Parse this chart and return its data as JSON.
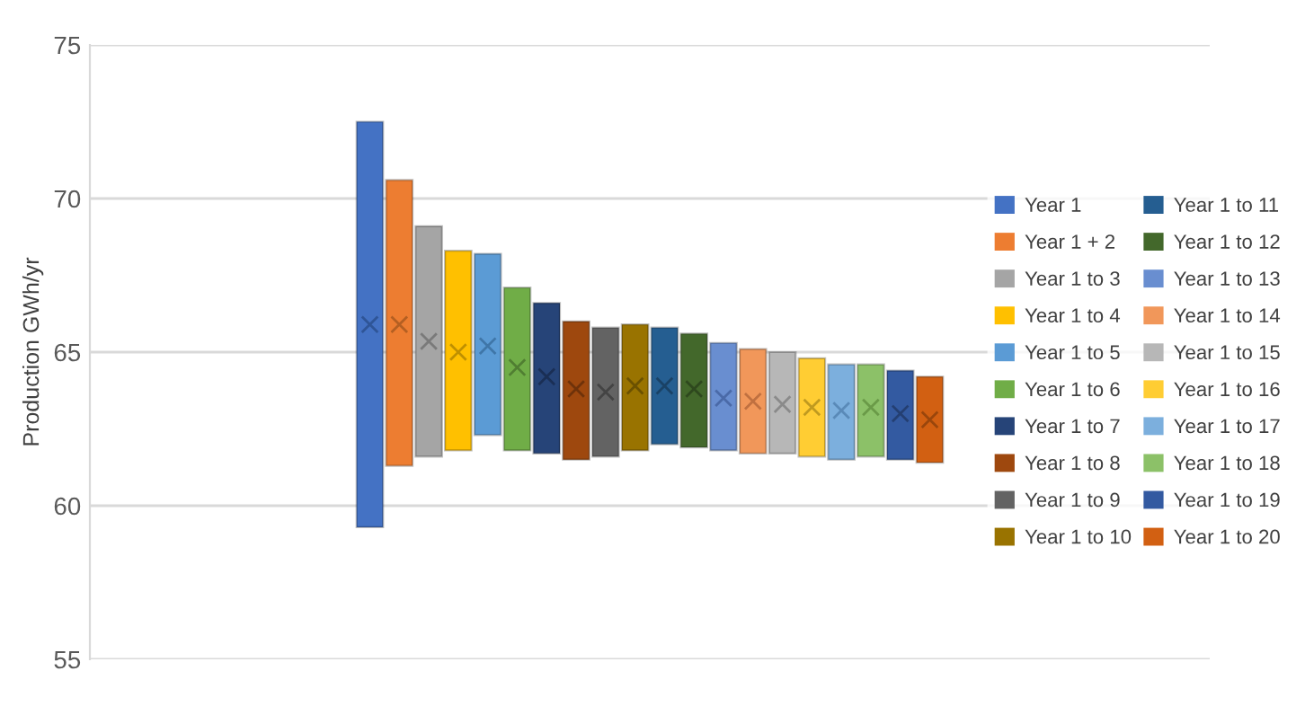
{
  "chart_data": {
    "type": "bar",
    "ylabel": "Production GWh/yr",
    "categories": [
      null,
      null,
      null,
      null,
      null,
      null,
      null,
      null,
      null,
      null,
      null,
      null,
      null,
      null,
      null,
      null,
      null,
      null,
      null,
      null,
      null,
      null,
      null,
      null,
      null,
      null,
      null,
      null,
      null,
      null,
      null,
      null,
      null,
      null,
      null,
      null,
      null,
      null
    ],
    "ylim": [
      55,
      75
    ],
    "yticks": [
      55,
      60,
      65,
      70,
      75
    ],
    "grid": "y",
    "legend": "right",
    "tick_labels": "y",
    "series": [
      {
        "name": "Year 1",
        "color": "#4472c4",
        "values": [
          null,
          null,
          null,
          null,
          null,
          null,
          null,
          null,
          null,
          13.2,
          null,
          null,
          null,
          null,
          null,
          null,
          null,
          null,
          null,
          null,
          null,
          null,
          null,
          null,
          null,
          null,
          null,
          null,
          null,
          null,
          null,
          null,
          null,
          null,
          null,
          null,
          null,
          null
        ],
        "base": [
          null,
          null,
          null,
          null,
          null,
          null,
          null,
          null,
          null,
          59.3,
          null,
          null,
          null,
          null,
          null,
          null,
          null,
          null,
          null,
          null,
          null,
          null,
          null,
          null,
          null,
          null,
          null,
          null,
          null,
          null,
          null,
          null,
          null,
          null,
          null,
          null,
          null,
          null
        ]
      },
      {
        "name": "Year 1 + 2",
        "color": "#ed7d31",
        "values": [
          null,
          null,
          null,
          null,
          null,
          null,
          null,
          null,
          null,
          null,
          9.3,
          null,
          null,
          null,
          null,
          null,
          null,
          null,
          null,
          null,
          null,
          null,
          null,
          null,
          null,
          null,
          null,
          null,
          null,
          null,
          null,
          null,
          null,
          null,
          null,
          null,
          null,
          null
        ],
        "base": [
          null,
          null,
          null,
          null,
          null,
          null,
          null,
          null,
          null,
          null,
          61.3,
          null,
          null,
          null,
          null,
          null,
          null,
          null,
          null,
          null,
          null,
          null,
          null,
          null,
          null,
          null,
          null,
          null,
          null,
          null,
          null,
          null,
          null,
          null,
          null,
          null,
          null,
          null
        ]
      },
      {
        "name": "Year 1 to 3",
        "color": "#a5a5a5",
        "values": [
          null,
          null,
          null,
          null,
          null,
          null,
          null,
          null,
          null,
          null,
          null,
          7.5,
          null,
          null,
          null,
          null,
          null,
          null,
          null,
          null,
          null,
          null,
          null,
          null,
          null,
          null,
          null,
          null,
          null,
          null,
          null,
          null,
          null,
          null,
          null,
          null,
          null,
          null
        ],
        "base": [
          null,
          null,
          null,
          null,
          null,
          null,
          null,
          null,
          null,
          null,
          null,
          61.6,
          null,
          null,
          null,
          null,
          null,
          null,
          null,
          null,
          null,
          null,
          null,
          null,
          null,
          null,
          null,
          null,
          null,
          null,
          null,
          null,
          null,
          null,
          null,
          null,
          null,
          null
        ]
      },
      {
        "name": "Year 1 to 4",
        "color": "#ffc000",
        "values": [
          null,
          null,
          null,
          null,
          null,
          null,
          null,
          null,
          null,
          null,
          null,
          null,
          6.5,
          null,
          null,
          null,
          null,
          null,
          null,
          null,
          null,
          null,
          null,
          null,
          null,
          null,
          null,
          null,
          null,
          null,
          null,
          null,
          null,
          null,
          null,
          null,
          null,
          null
        ],
        "base": [
          null,
          null,
          null,
          null,
          null,
          null,
          null,
          null,
          null,
          null,
          null,
          null,
          61.8,
          null,
          null,
          null,
          null,
          null,
          null,
          null,
          null,
          null,
          null,
          null,
          null,
          null,
          null,
          null,
          null,
          null,
          null,
          null,
          null,
          null,
          null,
          null,
          null,
          null
        ]
      },
      {
        "name": "Year 1 to 5",
        "color": "#5b9bd5",
        "values": [
          null,
          null,
          null,
          null,
          null,
          null,
          null,
          null,
          null,
          null,
          null,
          null,
          null,
          5.9,
          null,
          null,
          null,
          null,
          null,
          null,
          null,
          null,
          null,
          null,
          null,
          null,
          null,
          null,
          null,
          null,
          null,
          null,
          null,
          null,
          null,
          null,
          null,
          null
        ],
        "base": [
          null,
          null,
          null,
          null,
          null,
          null,
          null,
          null,
          null,
          null,
          null,
          null,
          null,
          62.3,
          null,
          null,
          null,
          null,
          null,
          null,
          null,
          null,
          null,
          null,
          null,
          null,
          null,
          null,
          null,
          null,
          null,
          null,
          null,
          null,
          null,
          null,
          null,
          null
        ]
      },
      {
        "name": "Year 1 to 6",
        "color": "#70ad47",
        "values": [
          null,
          null,
          null,
          null,
          null,
          null,
          null,
          null,
          null,
          null,
          null,
          null,
          null,
          null,
          5.3,
          null,
          null,
          null,
          null,
          null,
          null,
          null,
          null,
          null,
          null,
          null,
          null,
          null,
          null,
          null,
          null,
          null,
          null,
          null,
          null,
          null,
          null,
          null
        ],
        "base": [
          null,
          null,
          null,
          null,
          null,
          null,
          null,
          null,
          null,
          null,
          null,
          null,
          null,
          null,
          61.8,
          null,
          null,
          null,
          null,
          null,
          null,
          null,
          null,
          null,
          null,
          null,
          null,
          null,
          null,
          null,
          null,
          null,
          null,
          null,
          null,
          null,
          null,
          null
        ]
      },
      {
        "name": "Year 1 to 7",
        "color": "#264478",
        "values": [
          null,
          null,
          null,
          null,
          null,
          null,
          null,
          null,
          null,
          null,
          null,
          null,
          null,
          null,
          null,
          4.9,
          null,
          null,
          null,
          null,
          null,
          null,
          null,
          null,
          null,
          null,
          null,
          null,
          null,
          null,
          null,
          null,
          null,
          null,
          null,
          null,
          null,
          null
        ],
        "base": [
          null,
          null,
          null,
          null,
          null,
          null,
          null,
          null,
          null,
          null,
          null,
          null,
          null,
          null,
          null,
          61.7,
          null,
          null,
          null,
          null,
          null,
          null,
          null,
          null,
          null,
          null,
          null,
          null,
          null,
          null,
          null,
          null,
          null,
          null,
          null,
          null,
          null,
          null
        ]
      },
      {
        "name": "Year 1 to 8",
        "color": "#9e480e",
        "values": [
          null,
          null,
          null,
          null,
          null,
          null,
          null,
          null,
          null,
          null,
          null,
          null,
          null,
          null,
          null,
          null,
          4.5,
          null,
          null,
          null,
          null,
          null,
          null,
          null,
          null,
          null,
          null,
          null,
          null,
          null,
          null,
          null,
          null,
          null,
          null,
          null,
          null,
          null
        ],
        "base": [
          null,
          null,
          null,
          null,
          null,
          null,
          null,
          null,
          null,
          null,
          null,
          null,
          null,
          null,
          null,
          null,
          61.5,
          null,
          null,
          null,
          null,
          null,
          null,
          null,
          null,
          null,
          null,
          null,
          null,
          null,
          null,
          null,
          null,
          null,
          null,
          null,
          null,
          null
        ]
      },
      {
        "name": "Year 1 to 9",
        "color": "#636363",
        "values": [
          null,
          null,
          null,
          null,
          null,
          null,
          null,
          null,
          null,
          null,
          null,
          null,
          null,
          null,
          null,
          null,
          null,
          4.2,
          null,
          null,
          null,
          null,
          null,
          null,
          null,
          null,
          null,
          null,
          null,
          null,
          null,
          null,
          null,
          null,
          null,
          null,
          null,
          null
        ],
        "base": [
          null,
          null,
          null,
          null,
          null,
          null,
          null,
          null,
          null,
          null,
          null,
          null,
          null,
          null,
          null,
          null,
          null,
          61.6,
          null,
          null,
          null,
          null,
          null,
          null,
          null,
          null,
          null,
          null,
          null,
          null,
          null,
          null,
          null,
          null,
          null,
          null,
          null,
          null
        ]
      },
      {
        "name": "Year 1 to 10",
        "color": "#997300",
        "values": [
          null,
          null,
          null,
          null,
          null,
          null,
          null,
          null,
          null,
          null,
          null,
          null,
          null,
          null,
          null,
          null,
          null,
          null,
          4.1,
          null,
          null,
          null,
          null,
          null,
          null,
          null,
          null,
          null,
          null,
          null,
          null,
          null,
          null,
          null,
          null,
          null,
          null,
          null
        ],
        "base": [
          null,
          null,
          null,
          null,
          null,
          null,
          null,
          null,
          null,
          null,
          null,
          null,
          null,
          null,
          null,
          null,
          null,
          null,
          61.8,
          null,
          null,
          null,
          null,
          null,
          null,
          null,
          null,
          null,
          null,
          null,
          null,
          null,
          null,
          null,
          null,
          null,
          null,
          null
        ]
      },
      {
        "name": "Year 1 to 11",
        "color": "#255e91",
        "values": [
          null,
          null,
          null,
          null,
          null,
          null,
          null,
          null,
          null,
          null,
          null,
          null,
          null,
          null,
          null,
          null,
          null,
          null,
          null,
          3.8,
          null,
          null,
          null,
          null,
          null,
          null,
          null,
          null,
          null,
          null,
          null,
          null,
          null,
          null,
          null,
          null,
          null,
          null
        ],
        "base": [
          null,
          null,
          null,
          null,
          null,
          null,
          null,
          null,
          null,
          null,
          null,
          null,
          null,
          null,
          null,
          null,
          null,
          null,
          null,
          62.0,
          null,
          null,
          null,
          null,
          null,
          null,
          null,
          null,
          null,
          null,
          null,
          null,
          null,
          null,
          null,
          null,
          null,
          null
        ]
      },
      {
        "name": "Year 1 to 12",
        "color": "#43682b",
        "values": [
          null,
          null,
          null,
          null,
          null,
          null,
          null,
          null,
          null,
          null,
          null,
          null,
          null,
          null,
          null,
          null,
          null,
          null,
          null,
          null,
          3.7,
          null,
          null,
          null,
          null,
          null,
          null,
          null,
          null,
          null,
          null,
          null,
          null,
          null,
          null,
          null,
          null,
          null
        ],
        "base": [
          null,
          null,
          null,
          null,
          null,
          null,
          null,
          null,
          null,
          null,
          null,
          null,
          null,
          null,
          null,
          null,
          null,
          null,
          null,
          null,
          61.9,
          null,
          null,
          null,
          null,
          null,
          null,
          null,
          null,
          null,
          null,
          null,
          null,
          null,
          null,
          null,
          null,
          null
        ]
      },
      {
        "name": "Year 1 to 13",
        "color": "#698ed0",
        "values": [
          null,
          null,
          null,
          null,
          null,
          null,
          null,
          null,
          null,
          null,
          null,
          null,
          null,
          null,
          null,
          null,
          null,
          null,
          null,
          null,
          null,
          3.5,
          null,
          null,
          null,
          null,
          null,
          null,
          null,
          null,
          null,
          null,
          null,
          null,
          null,
          null,
          null,
          null
        ],
        "base": [
          null,
          null,
          null,
          null,
          null,
          null,
          null,
          null,
          null,
          null,
          null,
          null,
          null,
          null,
          null,
          null,
          null,
          null,
          null,
          null,
          null,
          61.8,
          null,
          null,
          null,
          null,
          null,
          null,
          null,
          null,
          null,
          null,
          null,
          null,
          null,
          null,
          null,
          null
        ]
      },
      {
        "name": "Year 1 to 14",
        "color": "#f1975a",
        "values": [
          null,
          null,
          null,
          null,
          null,
          null,
          null,
          null,
          null,
          null,
          null,
          null,
          null,
          null,
          null,
          null,
          null,
          null,
          null,
          null,
          null,
          null,
          3.4,
          null,
          null,
          null,
          null,
          null,
          null,
          null,
          null,
          null,
          null,
          null,
          null,
          null,
          null,
          null
        ],
        "base": [
          null,
          null,
          null,
          null,
          null,
          null,
          null,
          null,
          null,
          null,
          null,
          null,
          null,
          null,
          null,
          null,
          null,
          null,
          null,
          null,
          null,
          null,
          61.7,
          null,
          null,
          null,
          null,
          null,
          null,
          null,
          null,
          null,
          null,
          null,
          null,
          null,
          null,
          null
        ]
      },
      {
        "name": "Year 1 to 15",
        "color": "#b7b7b7",
        "values": [
          null,
          null,
          null,
          null,
          null,
          null,
          null,
          null,
          null,
          null,
          null,
          null,
          null,
          null,
          null,
          null,
          null,
          null,
          null,
          null,
          null,
          null,
          null,
          3.3,
          null,
          null,
          null,
          null,
          null,
          null,
          null,
          null,
          null,
          null,
          null,
          null,
          null,
          null
        ],
        "base": [
          null,
          null,
          null,
          null,
          null,
          null,
          null,
          null,
          null,
          null,
          null,
          null,
          null,
          null,
          null,
          null,
          null,
          null,
          null,
          null,
          null,
          null,
          null,
          61.7,
          null,
          null,
          null,
          null,
          null,
          null,
          null,
          null,
          null,
          null,
          null,
          null,
          null,
          null
        ]
      },
      {
        "name": "Year 1 to 16",
        "color": "#ffcd33",
        "values": [
          null,
          null,
          null,
          null,
          null,
          null,
          null,
          null,
          null,
          null,
          null,
          null,
          null,
          null,
          null,
          null,
          null,
          null,
          null,
          null,
          null,
          null,
          null,
          null,
          3.2,
          null,
          null,
          null,
          null,
          null,
          null,
          null,
          null,
          null,
          null,
          null,
          null,
          null
        ],
        "base": [
          null,
          null,
          null,
          null,
          null,
          null,
          null,
          null,
          null,
          null,
          null,
          null,
          null,
          null,
          null,
          null,
          null,
          null,
          null,
          null,
          null,
          null,
          null,
          null,
          61.6,
          null,
          null,
          null,
          null,
          null,
          null,
          null,
          null,
          null,
          null,
          null,
          null,
          null
        ]
      },
      {
        "name": "Year 1 to 17",
        "color": "#7cafdd",
        "values": [
          null,
          null,
          null,
          null,
          null,
          null,
          null,
          null,
          null,
          null,
          null,
          null,
          null,
          null,
          null,
          null,
          null,
          null,
          null,
          null,
          null,
          null,
          null,
          null,
          null,
          3.1,
          null,
          null,
          null,
          null,
          null,
          null,
          null,
          null,
          null,
          null,
          null,
          null
        ],
        "base": [
          null,
          null,
          null,
          null,
          null,
          null,
          null,
          null,
          null,
          null,
          null,
          null,
          null,
          null,
          null,
          null,
          null,
          null,
          null,
          null,
          null,
          null,
          null,
          null,
          null,
          61.5,
          null,
          null,
          null,
          null,
          null,
          null,
          null,
          null,
          null,
          null,
          null,
          null
        ]
      },
      {
        "name": "Year 1 to 18",
        "color": "#8cc168",
        "values": [
          null,
          null,
          null,
          null,
          null,
          null,
          null,
          null,
          null,
          null,
          null,
          null,
          null,
          null,
          null,
          null,
          null,
          null,
          null,
          null,
          null,
          null,
          null,
          null,
          null,
          null,
          3.0,
          null,
          null,
          null,
          null,
          null,
          null,
          null,
          null,
          null,
          null,
          null
        ],
        "base": [
          null,
          null,
          null,
          null,
          null,
          null,
          null,
          null,
          null,
          null,
          null,
          null,
          null,
          null,
          null,
          null,
          null,
          null,
          null,
          null,
          null,
          null,
          null,
          null,
          null,
          null,
          61.6,
          null,
          null,
          null,
          null,
          null,
          null,
          null,
          null,
          null,
          null,
          null
        ]
      },
      {
        "name": "Year 1 to 19",
        "color": "#335aa1",
        "values": [
          null,
          null,
          null,
          null,
          null,
          null,
          null,
          null,
          null,
          null,
          null,
          null,
          null,
          null,
          null,
          null,
          null,
          null,
          null,
          null,
          null,
          null,
          null,
          null,
          null,
          null,
          null,
          2.9,
          null,
          null,
          null,
          null,
          null,
          null,
          null,
          null,
          null,
          null
        ],
        "base": [
          null,
          null,
          null,
          null,
          null,
          null,
          null,
          null,
          null,
          null,
          null,
          null,
          null,
          null,
          null,
          null,
          null,
          null,
          null,
          null,
          null,
          null,
          null,
          null,
          null,
          null,
          null,
          61.5,
          null,
          null,
          null,
          null,
          null,
          null,
          null,
          null,
          null,
          null
        ]
      },
      {
        "name": "Year 1 to 20",
        "color": "#d26012",
        "values": [
          null,
          null,
          null,
          null,
          null,
          null,
          null,
          null,
          null,
          null,
          null,
          null,
          null,
          null,
          null,
          null,
          null,
          null,
          null,
          null,
          null,
          null,
          null,
          null,
          null,
          null,
          null,
          null,
          2.8,
          null,
          null,
          null,
          null,
          null,
          null,
          null,
          null,
          null
        ],
        "base": [
          null,
          null,
          null,
          null,
          null,
          null,
          null,
          null,
          null,
          null,
          null,
          null,
          null,
          null,
          null,
          null,
          null,
          null,
          null,
          null,
          null,
          null,
          null,
          null,
          null,
          null,
          null,
          null,
          61.4,
          null,
          null,
          null,
          null,
          null,
          null,
          null,
          null,
          null
        ]
      },
      {
        "type": "scatter",
        "marker": "cross",
        "values": [
          null,
          null,
          null,
          null,
          null,
          null,
          null,
          null,
          null,
          65.9,
          65.9,
          65.35,
          65.0,
          65.2,
          64.5,
          64.2,
          63.8,
          63.7,
          63.9,
          63.9,
          63.8,
          63.5,
          63.4,
          63.3,
          63.2,
          63.1,
          63.2,
          63.0,
          62.8,
          null,
          null,
          null,
          null,
          null,
          null,
          null,
          null,
          null
        ],
        "colors": [
          null,
          null,
          null,
          null,
          null,
          null,
          null,
          null,
          null,
          "#2f5597",
          "#b45f22",
          "#7a7a7a",
          "#bf9000",
          "#3f76a8",
          "#507e32",
          "#1a2f55",
          "#6e320a",
          "#444444",
          "#6b5100",
          "#1a4266",
          "#2e481e",
          "#4a6aa8",
          "#c07040",
          "#8a8a8a",
          "#c09a20",
          "#5a8ab8",
          "#6a9a48",
          "#243f72",
          "#9a460c",
          null,
          null,
          null,
          null,
          null,
          null,
          null,
          null,
          null
        ]
      }
    ]
  }
}
